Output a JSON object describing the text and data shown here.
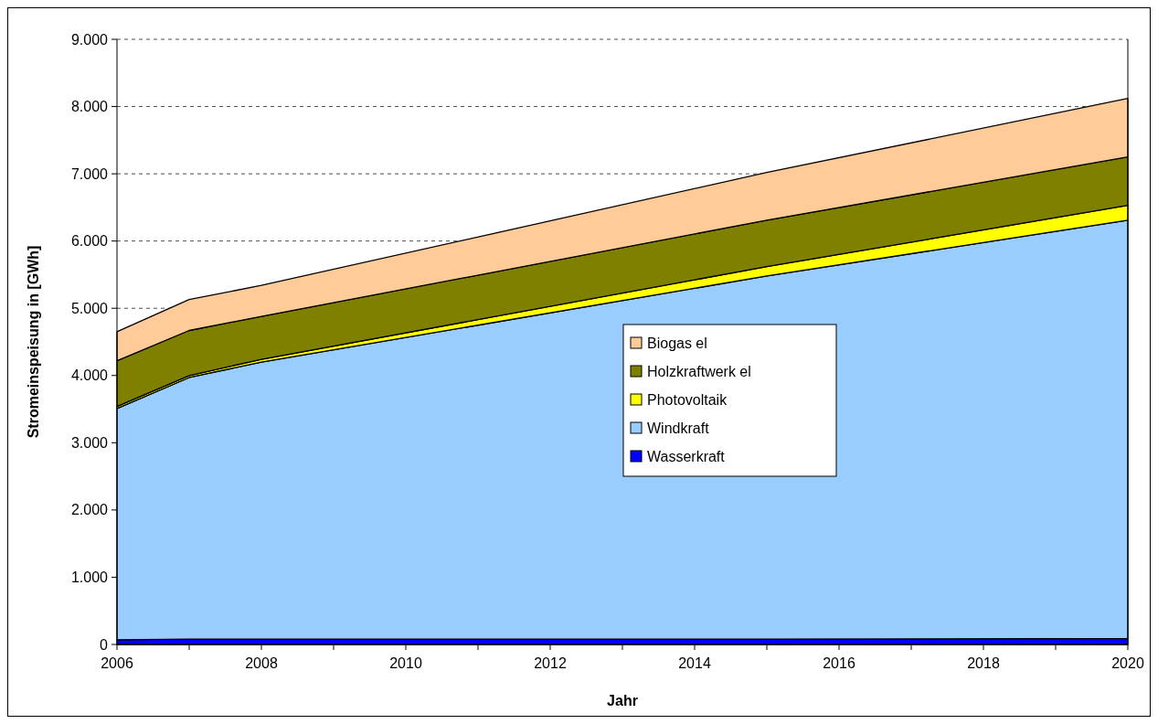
{
  "chart_data": {
    "type": "area",
    "stacked": true,
    "xlabel": "Jahr",
    "ylabel": "Stromeinspeisung in [GWh]",
    "x": [
      2006,
      2007,
      2008,
      2015,
      2020
    ],
    "series": [
      {
        "name": "Wasserkraft",
        "color": "#0000ff",
        "values": [
          70,
          80,
          80,
          80,
          90
        ]
      },
      {
        "name": "Windkraft",
        "color": "#99ccff",
        "values": [
          3440,
          3890,
          4120,
          5400,
          6220
        ]
      },
      {
        "name": "Photovoltaik",
        "color": "#ffff00",
        "values": [
          30,
          30,
          40,
          140,
          220
        ]
      },
      {
        "name": "Holzkraftwerk el",
        "color": "#808000",
        "values": [
          680,
          670,
          640,
          690,
          720
        ]
      },
      {
        "name": "Biogas el",
        "color": "#ffcc99",
        "values": [
          430,
          460,
          460,
          710,
          870
        ]
      }
    ],
    "xlim": [
      2006,
      2020
    ],
    "xticks": [
      2006,
      {
        "value": 2007,
        "label": null
      },
      2008,
      {
        "value": 2009,
        "label": null
      },
      2010,
      {
        "value": 2011,
        "label": null
      },
      2012,
      {
        "value": 2013,
        "label": null
      },
      2014,
      {
        "value": 2015,
        "label": null
      },
      2016,
      {
        "value": 2017,
        "label": null
      },
      2018,
      {
        "value": 2019,
        "label": null
      },
      2020
    ],
    "ylim": [
      0,
      9000
    ],
    "yticks": [
      {
        "value": 0,
        "label": "0"
      },
      {
        "value": 1000,
        "label": "1.000"
      },
      {
        "value": 2000,
        "label": "2.000"
      },
      {
        "value": 3000,
        "label": "3.000"
      },
      {
        "value": 4000,
        "label": "4.000"
      },
      {
        "value": 5000,
        "label": "5.000"
      },
      {
        "value": 6000,
        "label": "6.000"
      },
      {
        "value": 7000,
        "label": "7.000"
      },
      {
        "value": 8000,
        "label": "8.000"
      },
      {
        "value": 9000,
        "label": "9.000"
      }
    ],
    "grid": "y",
    "line_style": "dashed",
    "legend": "right"
  }
}
